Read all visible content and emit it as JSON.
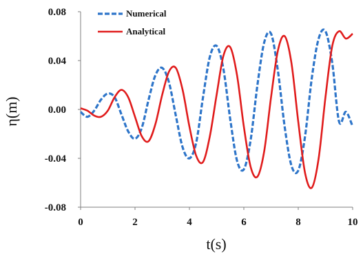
{
  "chart_data": {
    "type": "line",
    "title": "",
    "xlabel": "t(s)",
    "ylabel": "η(m)",
    "xlim": [
      0,
      10
    ],
    "ylim": [
      -0.08,
      0.08
    ],
    "x_ticks": [
      "0",
      "2",
      "4",
      "6",
      "8",
      "10"
    ],
    "y_ticks": [
      "0.08",
      "0.04",
      "0.00",
      "-0.04",
      "-0.08"
    ],
    "grid": false,
    "legend_position": "top-left",
    "series": [
      {
        "name": "Numerical",
        "color": "#2e75c9",
        "style": "dashed",
        "x": [
          0.0,
          0.25,
          0.5,
          0.75,
          1.0,
          1.25,
          1.5,
          1.75,
          2.0,
          2.25,
          2.5,
          2.75,
          3.0,
          3.25,
          3.5,
          3.75,
          4.0,
          4.25,
          4.5,
          4.75,
          5.0,
          5.25,
          5.5,
          5.75,
          6.0,
          6.25,
          6.5,
          6.75,
          7.0,
          7.25,
          7.5,
          7.75,
          8.0,
          8.25,
          8.5,
          8.75,
          9.0,
          9.25,
          9.5,
          9.75,
          10.0
        ],
        "y": [
          -0.002,
          -0.006,
          -0.001,
          0.008,
          0.013,
          0.01,
          -0.004,
          -0.018,
          -0.024,
          -0.015,
          0.008,
          0.028,
          0.034,
          0.022,
          -0.005,
          -0.031,
          -0.04,
          -0.027,
          0.01,
          0.043,
          0.052,
          0.033,
          -0.008,
          -0.042,
          -0.049,
          -0.025,
          0.02,
          0.055,
          0.062,
          0.032,
          -0.014,
          -0.046,
          -0.05,
          -0.022,
          0.026,
          0.058,
          0.064,
          0.038,
          -0.01,
          -0.002,
          -0.014
        ]
      },
      {
        "name": "Analytical",
        "color": "#e01b1b",
        "style": "solid",
        "x": [
          0.0,
          0.25,
          0.5,
          0.75,
          1.0,
          1.25,
          1.5,
          1.75,
          2.0,
          2.25,
          2.5,
          2.75,
          3.0,
          3.25,
          3.5,
          3.75,
          4.0,
          4.25,
          4.5,
          4.75,
          5.0,
          5.25,
          5.5,
          5.75,
          6.0,
          6.25,
          6.5,
          6.75,
          7.0,
          7.25,
          7.5,
          7.75,
          8.0,
          8.25,
          8.5,
          8.75,
          9.0,
          9.25,
          9.5,
          9.75,
          10.0
        ],
        "y": [
          0.001,
          -0.001,
          -0.005,
          -0.006,
          -0.001,
          0.01,
          0.016,
          0.01,
          -0.006,
          -0.022,
          -0.026,
          -0.012,
          0.012,
          0.031,
          0.034,
          0.016,
          -0.014,
          -0.038,
          -0.043,
          -0.022,
          0.012,
          0.044,
          0.051,
          0.028,
          -0.014,
          -0.047,
          -0.055,
          -0.034,
          0.01,
          0.048,
          0.06,
          0.038,
          -0.01,
          -0.052,
          -0.064,
          -0.04,
          0.01,
          0.052,
          0.064,
          0.058,
          0.062
        ]
      }
    ]
  }
}
